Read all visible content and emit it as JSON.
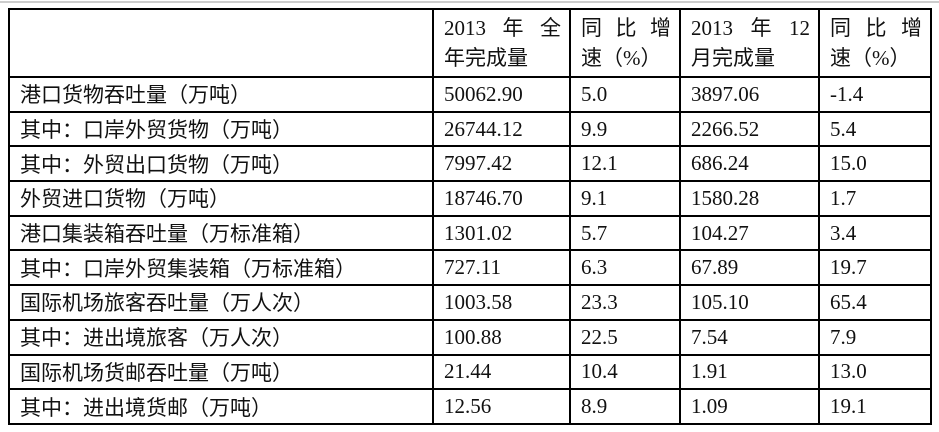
{
  "page": {
    "background": "#ffffff",
    "border_color": "#000000",
    "text_color": "#111111"
  },
  "table": {
    "header": [
      {
        "label": "",
        "lines": []
      },
      {
        "label": "2013年全年完成量",
        "lines": [
          "2013年全",
          "年完成量"
        ]
      },
      {
        "label": "同比增速（%）",
        "lines": [
          "同比增",
          "速（%）"
        ]
      },
      {
        "label": "2013年12月完成量",
        "lines": [
          "2013年12",
          "月完成量"
        ]
      },
      {
        "label": "同比增速（%）",
        "lines": [
          "同比增",
          "速（%）"
        ]
      }
    ],
    "rows": [
      {
        "label": "港口货物吞吐量（万吨）",
        "values": [
          "50062.90",
          "5.0",
          "3897.06",
          "-1.4"
        ]
      },
      {
        "label": "其中：口岸外贸货物（万吨）",
        "values": [
          "26744.12",
          "9.9",
          "2266.52",
          "5.4"
        ]
      },
      {
        "label": "其中：外贸出口货物（万吨）",
        "values": [
          "7997.42",
          "12.1",
          "686.24",
          "15.0"
        ]
      },
      {
        "label": "外贸进口货物（万吨）",
        "values": [
          "18746.70",
          "9.1",
          "1580.28",
          "1.7"
        ]
      },
      {
        "label": "港口集装箱吞吐量（万标准箱）",
        "values": [
          "1301.02",
          "5.7",
          "104.27",
          "3.4"
        ]
      },
      {
        "label": "其中：口岸外贸集装箱（万标准箱）",
        "values": [
          "727.11",
          "6.3",
          "67.89",
          "19.7"
        ]
      },
      {
        "label": "国际机场旅客吞吐量（万人次）",
        "values": [
          "1003.58",
          "23.3",
          "105.10",
          "65.4"
        ]
      },
      {
        "label": "其中：进出境旅客（万人次）",
        "values": [
          "100.88",
          "22.5",
          "7.54",
          "7.9"
        ]
      },
      {
        "label": "国际机场货邮吞吐量（万吨）",
        "values": [
          "21.44",
          "10.4",
          "1.91",
          "13.0"
        ]
      },
      {
        "label": "其中：进出境货邮（万吨）",
        "values": [
          "12.56",
          "8.9",
          "1.09",
          "19.1"
        ]
      }
    ]
  }
}
